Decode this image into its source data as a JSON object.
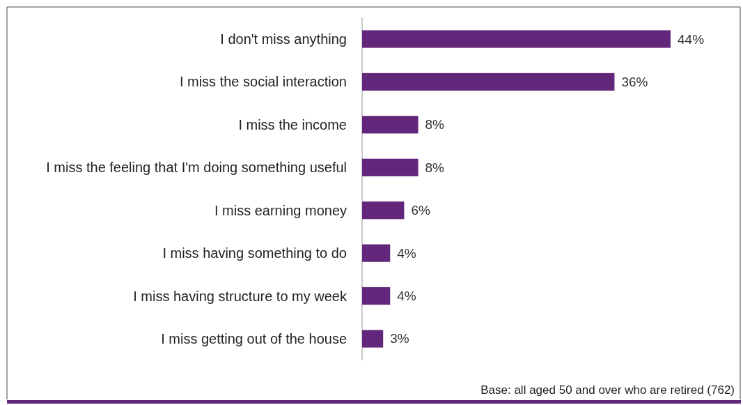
{
  "chart_data": {
    "type": "bar",
    "orientation": "horizontal",
    "categories": [
      "I don't miss anything",
      "I miss the social interaction",
      "I miss the income",
      "I miss the feeling that I'm doing something useful",
      "I miss earning money",
      "I miss having something to do",
      "I miss having structure to my week",
      "I miss getting out of the house"
    ],
    "values": [
      44,
      36,
      8,
      8,
      6,
      4,
      4,
      3
    ],
    "value_labels": [
      "44%",
      "36%",
      "8%",
      "8%",
      "6%",
      "4%",
      "4%",
      "3%"
    ],
    "color": "#62267a",
    "annotations": [
      "Base: all aged 50 and over who are retired (762)"
    ]
  }
}
